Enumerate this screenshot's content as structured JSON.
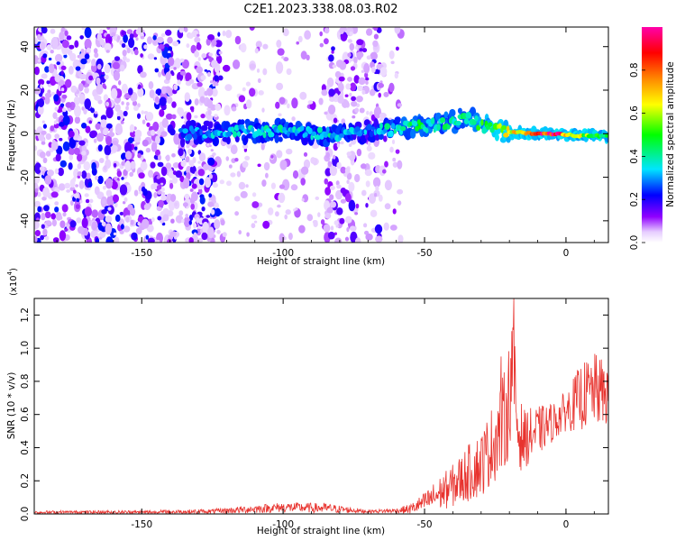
{
  "figure": {
    "title": "C2E1.2023.338.08.03.R02"
  },
  "chart_data": [
    {
      "type": "heatmap",
      "xlabel": "Height of straight line (km)",
      "ylabel": "Frequency (Hz)",
      "xlim": [
        -188,
        15
      ],
      "ylim": [
        -50,
        49
      ],
      "x_ticks": [
        -150,
        -100,
        -50,
        0
      ],
      "x_tick_labels": [
        "-150",
        "-100",
        "-50",
        "0"
      ],
      "y_ticks": [
        40,
        20,
        0,
        -20,
        -40
      ],
      "y_tick_labels": [
        "40",
        "20",
        "0",
        "-20",
        "-40"
      ],
      "colorbar": {
        "label": "Normalized spectral amplitude",
        "range": [
          0,
          1
        ],
        "ticks": [
          0.0,
          0.2,
          0.4,
          0.6,
          0.8
        ],
        "tick_labels": [
          "0.0",
          "0.2",
          "0.4",
          "0.6",
          "0.8"
        ],
        "colors": [
          "#f4eaff",
          "#9000ff",
          "#0000ff",
          "#00e5ff",
          "#00ff00",
          "#ffff00",
          "#ff8800",
          "#ff0000",
          "#ff00aa"
        ]
      },
      "noise_regions": [
        {
          "x_range": [
            -188,
            -122
          ],
          "density": 1.0
        },
        {
          "x_range": [
            -122,
            -85
          ],
          "density": 0.25
        },
        {
          "x_range": [
            -85,
            -66
          ],
          "density": 0.75
        },
        {
          "x_range": [
            -66,
            -58
          ],
          "density": 0.3
        }
      ],
      "signal_band": [
        {
          "x": -136,
          "freq": 0,
          "amp": 0.28
        },
        {
          "x": -120,
          "freq": 1,
          "amp": 0.34
        },
        {
          "x": -100,
          "freq": 1,
          "amp": 0.38
        },
        {
          "x": -80,
          "freq": 0,
          "amp": 0.36
        },
        {
          "x": -70,
          "freq": 1,
          "amp": 0.3
        },
        {
          "x": -55,
          "freq": 3,
          "amp": 0.45
        },
        {
          "x": -45,
          "freq": 4,
          "amp": 0.42
        },
        {
          "x": -35,
          "freq": 7,
          "amp": 0.45
        },
        {
          "x": -28,
          "freq": 3,
          "amp": 0.5
        },
        {
          "x": -20,
          "freq": 1,
          "amp": 0.62
        },
        {
          "x": -12,
          "freq": 0,
          "amp": 0.9
        },
        {
          "x": -4,
          "freq": 0,
          "amp": 0.95
        },
        {
          "x": 5,
          "freq": -1,
          "amp": 0.6
        },
        {
          "x": 15,
          "freq": -1,
          "amp": 0.5
        }
      ]
    },
    {
      "type": "line",
      "xlabel": "Height of straight line (km)",
      "ylabel": "SNR (10 * v/v)",
      "y_multiplier": "(x10",
      "y_multiplier_exp": "4",
      "y_multiplier_close": ")",
      "xlim": [
        -188,
        15
      ],
      "ylim": [
        0,
        1.3
      ],
      "x_ticks": [
        -150,
        -100,
        -50,
        0
      ],
      "x_tick_labels": [
        "-150",
        "-100",
        "-50",
        "0"
      ],
      "y_ticks": [
        0.0,
        0.2,
        0.4,
        0.6,
        0.8,
        1.0,
        1.2
      ],
      "y_tick_labels": [
        "0.0",
        "0.2",
        "0.4",
        "0.6",
        "0.8",
        "1.0",
        "1.2"
      ],
      "color": "#e8332e",
      "series": [
        {
          "envelope_x": [
            -188,
            -150,
            -125,
            -110,
            -100,
            -85,
            -70,
            -60,
            -55,
            -50,
            -45,
            -40,
            -35,
            -30,
            -25,
            -22,
            -20,
            -19,
            -17,
            -15,
            -10,
            -5,
            0,
            5,
            10,
            15
          ],
          "envelope_y": [
            0.01,
            0.01,
            0.015,
            0.03,
            0.04,
            0.035,
            0.015,
            0.02,
            0.03,
            0.07,
            0.12,
            0.17,
            0.24,
            0.3,
            0.45,
            0.55,
            0.7,
            0.95,
            0.5,
            0.45,
            0.5,
            0.55,
            0.62,
            0.7,
            0.75,
            0.72
          ],
          "noise_amp": [
            0.01,
            0.012,
            0.015,
            0.025,
            0.03,
            0.03,
            0.01,
            0.015,
            0.03,
            0.06,
            0.1,
            0.13,
            0.17,
            0.2,
            0.25,
            0.3,
            0.35,
            0.3,
            0.25,
            0.18,
            0.15,
            0.12,
            0.12,
            0.2,
            0.22,
            0.2
          ],
          "peaks": [
            {
              "x": -18.5,
              "y": 1.3
            },
            {
              "x": -23,
              "y": 0.95
            }
          ]
        }
      ]
    }
  ]
}
